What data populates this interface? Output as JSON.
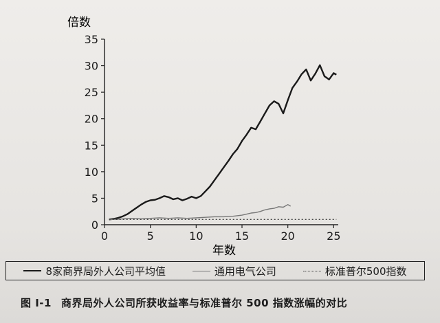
{
  "chart_data": {
    "type": "line",
    "ylabel": "倍数",
    "xlabel": "年数",
    "xlim": [
      0,
      25.5
    ],
    "ylim": [
      0,
      35
    ],
    "xticks": [
      0,
      5,
      10,
      15,
      20,
      25
    ],
    "yticks": [
      0,
      5,
      10,
      15,
      20,
      25,
      30,
      35
    ],
    "grid": false,
    "legend_position": "bottom",
    "series": [
      {
        "name": "8家商界局外人公司平均值",
        "color": "#1a1a1a",
        "style": "solid",
        "x": [
          0.5,
          1,
          1.5,
          2,
          2.5,
          3,
          3.5,
          4,
          4.5,
          5,
          5.5,
          6,
          6.5,
          7,
          7.5,
          8,
          8.5,
          9,
          9.5,
          10,
          10.5,
          11,
          11.5,
          12,
          12.5,
          13,
          13.5,
          14,
          14.5,
          15,
          15.5,
          16,
          16.5,
          17,
          17.5,
          18,
          18.5,
          19,
          19.5,
          20,
          20.5,
          21,
          21.5,
          22,
          22.5,
          23,
          23.5,
          24,
          24.5,
          25,
          25.3
        ],
        "y": [
          1.0,
          1.1,
          1.3,
          1.6,
          2.0,
          2.6,
          3.2,
          3.8,
          4.3,
          4.6,
          4.7,
          5.0,
          5.4,
          5.2,
          4.8,
          5.0,
          4.6,
          4.9,
          5.3,
          5.0,
          5.4,
          6.3,
          7.2,
          8.4,
          9.6,
          10.8,
          12.0,
          13.3,
          14.3,
          15.8,
          17.0,
          18.3,
          18.0,
          19.5,
          21.0,
          22.5,
          23.3,
          22.8,
          21.0,
          23.5,
          25.8,
          27.0,
          28.4,
          29.3,
          27.2,
          28.5,
          30.1,
          28.0,
          27.4,
          28.6,
          28.3
        ]
      },
      {
        "name": "通用电气公司",
        "color": "#777777",
        "style": "solid",
        "x": [
          0.5,
          1,
          2,
          3,
          4,
          5,
          6,
          7,
          8,
          9,
          10,
          11,
          12,
          13,
          14,
          15,
          15.5,
          16,
          16.5,
          17,
          17.5,
          18,
          18.5,
          19,
          19.5,
          20,
          20.3
        ],
        "y": [
          1.0,
          1.0,
          1.1,
          1.2,
          1.1,
          1.2,
          1.3,
          1.2,
          1.3,
          1.2,
          1.3,
          1.4,
          1.5,
          1.5,
          1.6,
          1.8,
          2.0,
          2.2,
          2.3,
          2.5,
          2.8,
          3.0,
          3.1,
          3.4,
          3.3,
          3.8,
          3.5
        ]
      },
      {
        "name": "标准普尔500指数",
        "color": "#444444",
        "style": "dotted",
        "x": [
          0.5,
          5,
          10,
          15,
          20,
          25.3
        ],
        "y": [
          1.0,
          1.0,
          1.0,
          1.0,
          1.0,
          1.0
        ]
      }
    ]
  },
  "caption": {
    "figure_number": "图 I-1",
    "text": "商界局外人公司所获收益率与标准普尔 500 指数涨幅的对比"
  }
}
